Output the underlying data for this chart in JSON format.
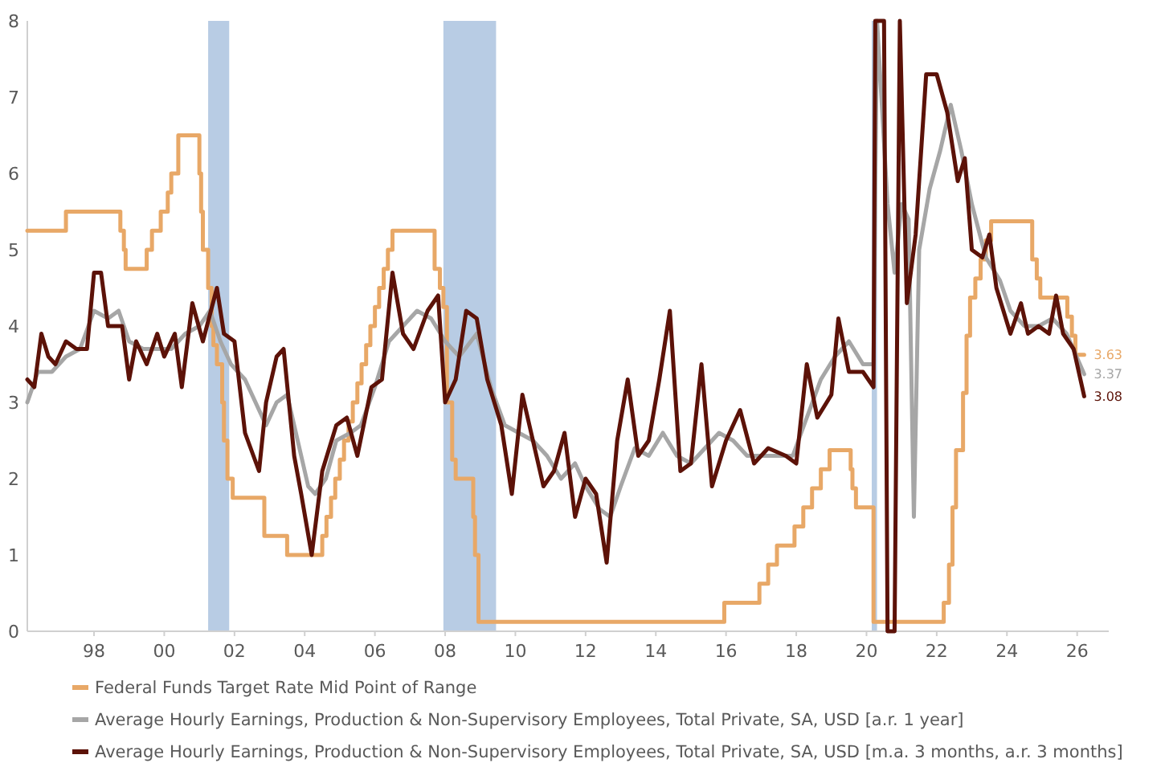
{
  "chart_data": {
    "type": "line",
    "xlim": [
      1996.1,
      2026.9
    ],
    "ylim": [
      0,
      8
    ],
    "xticks": [
      {
        "value": 1998,
        "label": "98"
      },
      {
        "value": 2000,
        "label": "00"
      },
      {
        "value": 2002,
        "label": "02"
      },
      {
        "value": 2004,
        "label": "04"
      },
      {
        "value": 2006,
        "label": "06"
      },
      {
        "value": 2008,
        "label": "08"
      },
      {
        "value": 2010,
        "label": "10"
      },
      {
        "value": 2012,
        "label": "12"
      },
      {
        "value": 2014,
        "label": "14"
      },
      {
        "value": 2016,
        "label": "16"
      },
      {
        "value": 2018,
        "label": "18"
      },
      {
        "value": 2020,
        "label": "20"
      },
      {
        "value": 2022,
        "label": "22"
      },
      {
        "value": 2024,
        "label": "24"
      },
      {
        "value": 2026,
        "label": "26"
      }
    ],
    "yticks": [
      0,
      1,
      2,
      3,
      4,
      5,
      6,
      7,
      8
    ],
    "grid": false,
    "legend": "bottom",
    "bands": [
      {
        "axis": "x",
        "from": 2001.25,
        "to": 2001.85,
        "color": "#b8cce4"
      },
      {
        "axis": "x",
        "from": 2007.95,
        "to": 2009.45,
        "color": "#b8cce4"
      },
      {
        "axis": "x",
        "from": 2020.15,
        "to": 2020.3,
        "color": "#b8cce4"
      }
    ],
    "series": [
      {
        "name": "Federal Funds Target Rate Mid Point of Range",
        "type": "step",
        "color": "#e8a867",
        "x": [
          1996.1,
          1997.2,
          1998.75,
          1998.85,
          1998.9,
          1999.5,
          1999.65,
          1999.9,
          2000.1,
          2000.2,
          2000.4,
          2001.0,
          2001.05,
          2001.1,
          2001.25,
          2001.35,
          2001.4,
          2001.5,
          2001.65,
          2001.7,
          2001.8,
          2001.85,
          2001.95,
          2002.85,
          2003.5,
          2004.5,
          2004.62,
          2004.75,
          2004.87,
          2005.0,
          2005.12,
          2005.25,
          2005.37,
          2005.5,
          2005.62,
          2005.75,
          2005.87,
          2006.0,
          2006.12,
          2006.25,
          2006.37,
          2006.5,
          2007.7,
          2007.85,
          2007.95,
          2008.05,
          2008.2,
          2008.3,
          2008.8,
          2008.85,
          2008.95,
          2015.95,
          2016.95,
          2017.2,
          2017.45,
          2017.95,
          2018.2,
          2018.45,
          2018.7,
          2018.95,
          2019.55,
          2019.6,
          2019.7,
          2019.8,
          2020.2,
          2022.2,
          2022.35,
          2022.45,
          2022.55,
          2022.75,
          2022.85,
          2022.95,
          2023.1,
          2023.25,
          2023.4,
          2023.55,
          2024.72,
          2024.85,
          2024.95,
          2025.72,
          2025.85,
          2025.95,
          2026.2
        ],
        "values": [
          5.25,
          5.5,
          5.25,
          5.0,
          4.75,
          5.0,
          5.25,
          5.5,
          5.75,
          6.0,
          6.5,
          6.0,
          5.5,
          5.0,
          4.5,
          4.0,
          3.75,
          3.5,
          3.0,
          2.5,
          2.0,
          2.0,
          1.75,
          1.25,
          1.0,
          1.25,
          1.5,
          1.75,
          2.0,
          2.25,
          2.5,
          2.75,
          3.0,
          3.25,
          3.5,
          3.75,
          4.0,
          4.25,
          4.5,
          4.75,
          5.0,
          5.25,
          4.75,
          4.5,
          4.25,
          3.0,
          2.25,
          2.0,
          1.5,
          1.0,
          0.125,
          0.375,
          0.625,
          0.875,
          1.125,
          1.375,
          1.625,
          1.875,
          2.125,
          2.375,
          2.125,
          1.875,
          1.625,
          1.625,
          0.125,
          0.375,
          0.875,
          1.625,
          2.375,
          3.125,
          3.875,
          4.375,
          4.625,
          4.875,
          5.125,
          5.375,
          4.875,
          4.625,
          4.375,
          4.125,
          3.875,
          3.625,
          3.625
        ],
        "value_labels": [
          null,
          null,
          null,
          null,
          null,
          null,
          null,
          null,
          null,
          null,
          null,
          null,
          null,
          null,
          null,
          null,
          null,
          null,
          null,
          null,
          null,
          null,
          null,
          null,
          null,
          null,
          null,
          null,
          null,
          null,
          null,
          null,
          null,
          null,
          null,
          null,
          null,
          null,
          null,
          null,
          null,
          null,
          null,
          null,
          null,
          null,
          null,
          null,
          null,
          null,
          null,
          null,
          null,
          null,
          null,
          null,
          null,
          null,
          null,
          null,
          null,
          null,
          null,
          null,
          null,
          null,
          null,
          null,
          null,
          null,
          null,
          null,
          null,
          null,
          null,
          null,
          null,
          null,
          null,
          null,
          null,
          null,
          "3.63"
        ]
      },
      {
        "name": "Average Hourly Earnings, Production & Non-Supervisory Employees, Total Private, SA, USD [a.r. 1 year]",
        "color": "#a6a6a6",
        "x": [
          1996.1,
          1996.4,
          1996.8,
          1997.2,
          1997.6,
          1998.0,
          1998.4,
          1998.7,
          1999.0,
          1999.4,
          1999.8,
          2000.2,
          2000.6,
          2001.0,
          2001.3,
          2001.6,
          2001.9,
          2002.3,
          2002.6,
          2002.9,
          2003.2,
          2003.5,
          2003.8,
          2004.1,
          2004.3,
          2004.6,
          2004.9,
          2005.3,
          2005.6,
          2006.0,
          2006.4,
          2006.8,
          2007.2,
          2007.6,
          2008.0,
          2008.4,
          2008.9,
          2009.3,
          2009.7,
          2010.1,
          2010.5,
          2010.9,
          2011.3,
          2011.7,
          2012.0,
          2012.4,
          2012.7,
          2013.0,
          2013.4,
          2013.8,
          2014.2,
          2014.6,
          2015.0,
          2015.4,
          2015.8,
          2016.2,
          2016.6,
          2017.0,
          2017.4,
          2017.9,
          2018.3,
          2018.7,
          2019.1,
          2019.5,
          2019.9,
          2020.2,
          2020.3,
          2020.6,
          2020.8,
          2021.0,
          2021.2,
          2021.35,
          2021.5,
          2021.8,
          2022.1,
          2022.4,
          2022.7,
          2023.0,
          2023.4,
          2023.8,
          2024.1,
          2024.5,
          2024.9,
          2025.3,
          2025.7,
          2026.2
        ],
        "values": [
          3.0,
          3.4,
          3.4,
          3.6,
          3.7,
          4.2,
          4.1,
          4.2,
          3.8,
          3.7,
          3.7,
          3.7,
          3.9,
          4.0,
          4.2,
          3.8,
          3.5,
          3.3,
          3.0,
          2.7,
          3.0,
          3.1,
          2.5,
          1.9,
          1.8,
          2.0,
          2.5,
          2.6,
          2.7,
          3.2,
          3.8,
          4.0,
          4.2,
          4.1,
          3.8,
          3.6,
          3.9,
          3.2,
          2.7,
          2.6,
          2.5,
          2.3,
          2.0,
          2.2,
          1.9,
          1.6,
          1.5,
          1.9,
          2.4,
          2.3,
          2.6,
          2.3,
          2.2,
          2.4,
          2.6,
          2.5,
          2.3,
          2.3,
          2.3,
          2.3,
          2.8,
          3.3,
          3.6,
          3.8,
          3.5,
          3.5,
          8.0,
          5.6,
          4.7,
          5.6,
          5.4,
          1.5,
          5.0,
          5.8,
          6.3,
          6.9,
          6.3,
          5.6,
          4.9,
          4.6,
          4.2,
          4.0,
          4.0,
          4.1,
          3.9,
          3.37
        ],
        "value_labels": [
          null,
          null,
          null,
          null,
          null,
          null,
          null,
          null,
          null,
          null,
          null,
          null,
          null,
          null,
          null,
          null,
          null,
          null,
          null,
          null,
          null,
          null,
          null,
          null,
          null,
          null,
          null,
          null,
          null,
          null,
          null,
          null,
          null,
          null,
          null,
          null,
          null,
          null,
          null,
          null,
          null,
          null,
          null,
          null,
          null,
          null,
          null,
          null,
          null,
          null,
          null,
          null,
          null,
          null,
          null,
          null,
          null,
          null,
          null,
          null,
          null,
          null,
          null,
          null,
          null,
          null,
          null,
          null,
          null,
          null,
          null,
          null,
          null,
          null,
          null,
          null,
          null,
          null,
          null,
          null,
          null,
          null,
          null,
          null,
          null,
          "3.37"
        ]
      },
      {
        "name": "Average Hourly Earnings, Production & Non-Supervisory Employees, Total Private, SA, USD [m.a. 3 months, a.r. 3 months]",
        "color": "#5c1208",
        "x": [
          1996.1,
          1996.3,
          1996.5,
          1996.7,
          1996.9,
          1997.2,
          1997.5,
          1997.8,
          1998.0,
          1998.2,
          1998.4,
          1998.8,
          1999.0,
          1999.2,
          1999.5,
          1999.8,
          2000.0,
          2000.3,
          2000.5,
          2000.8,
          2001.1,
          2001.5,
          2001.7,
          2002.0,
          2002.3,
          2002.7,
          2002.9,
          2003.2,
          2003.4,
          2003.7,
          2003.9,
          2004.2,
          2004.5,
          2004.9,
          2005.2,
          2005.5,
          2005.9,
          2006.2,
          2006.5,
          2006.8,
          2007.1,
          2007.5,
          2007.8,
          2008.0,
          2008.3,
          2008.6,
          2008.9,
          2009.2,
          2009.6,
          2009.9,
          2010.2,
          2010.5,
          2010.8,
          2011.1,
          2011.4,
          2011.7,
          2012.0,
          2012.3,
          2012.6,
          2012.9,
          2013.2,
          2013.5,
          2013.8,
          2014.1,
          2014.4,
          2014.7,
          2015.0,
          2015.3,
          2015.6,
          2016.0,
          2016.4,
          2016.8,
          2017.2,
          2017.7,
          2018.0,
          2018.3,
          2018.6,
          2019.0,
          2019.2,
          2019.5,
          2019.9,
          2020.2,
          2020.25,
          2020.5,
          2020.6,
          2020.8,
          2020.95,
          2021.15,
          2021.4,
          2021.7,
          2022.0,
          2022.3,
          2022.6,
          2022.8,
          2023.0,
          2023.3,
          2023.5,
          2023.7,
          2023.9,
          2024.1,
          2024.4,
          2024.6,
          2024.9,
          2025.2,
          2025.4,
          2025.6,
          2025.9,
          2026.2
        ],
        "values": [
          3.3,
          3.2,
          3.9,
          3.6,
          3.5,
          3.8,
          3.7,
          3.7,
          4.7,
          4.7,
          4.0,
          4.0,
          3.3,
          3.8,
          3.5,
          3.9,
          3.6,
          3.9,
          3.2,
          4.3,
          3.8,
          4.5,
          3.9,
          3.8,
          2.6,
          2.1,
          3.0,
          3.6,
          3.7,
          2.3,
          1.8,
          1.0,
          2.1,
          2.7,
          2.8,
          2.3,
          3.2,
          3.3,
          4.7,
          3.9,
          3.7,
          4.2,
          4.4,
          3.0,
          3.3,
          4.2,
          4.1,
          3.3,
          2.7,
          1.8,
          3.1,
          2.5,
          1.9,
          2.1,
          2.6,
          1.5,
          2.0,
          1.8,
          0.9,
          2.5,
          3.3,
          2.3,
          2.5,
          3.3,
          4.2,
          2.1,
          2.2,
          3.5,
          1.9,
          2.5,
          2.9,
          2.2,
          2.4,
          2.3,
          2.2,
          3.5,
          2.8,
          3.1,
          4.1,
          3.4,
          3.4,
          3.2,
          8.0,
          8.0,
          0.0,
          0.0,
          8.0,
          4.3,
          5.2,
          7.3,
          7.3,
          6.8,
          5.9,
          6.2,
          5.0,
          4.9,
          5.2,
          4.5,
          4.2,
          3.9,
          4.3,
          3.9,
          4.0,
          3.9,
          4.4,
          3.9,
          3.7,
          3.08
        ],
        "value_labels": [
          null,
          null,
          null,
          null,
          null,
          null,
          null,
          null,
          null,
          null,
          null,
          null,
          null,
          null,
          null,
          null,
          null,
          null,
          null,
          null,
          null,
          null,
          null,
          null,
          null,
          null,
          null,
          null,
          null,
          null,
          null,
          null,
          null,
          null,
          null,
          null,
          null,
          null,
          null,
          null,
          null,
          null,
          null,
          null,
          null,
          null,
          null,
          null,
          null,
          null,
          null,
          null,
          null,
          null,
          null,
          null,
          null,
          null,
          null,
          null,
          null,
          null,
          null,
          null,
          null,
          null,
          null,
          null,
          null,
          null,
          null,
          null,
          null,
          null,
          null,
          null,
          null,
          null,
          null,
          null,
          null,
          null,
          null,
          null,
          null,
          null,
          null,
          null,
          null,
          null,
          null,
          null,
          null,
          null,
          null,
          null,
          null,
          null,
          null,
          null,
          null,
          null,
          null,
          null,
          null,
          null,
          null,
          "3.08"
        ]
      }
    ]
  }
}
